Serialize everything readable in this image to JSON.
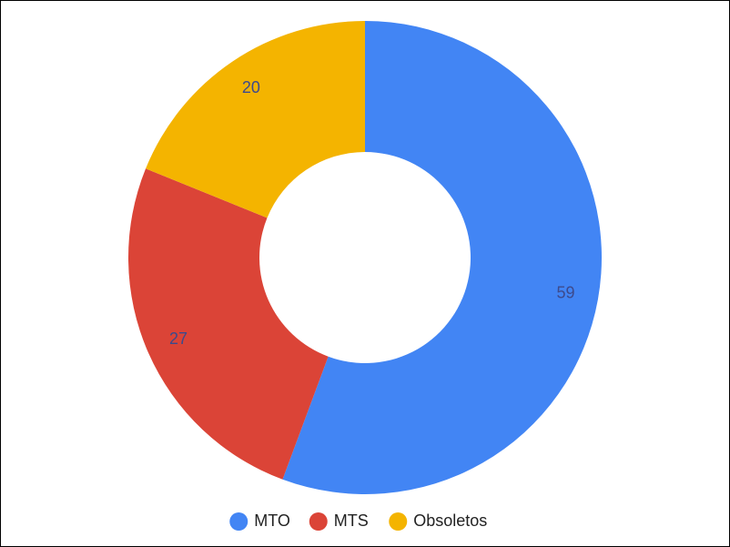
{
  "chart_data": {
    "type": "donut",
    "categories": [
      "MTO",
      "MTS",
      "Obsoletos"
    ],
    "values": [
      59,
      27,
      20
    ],
    "colors": [
      "#4285f4",
      "#db4437",
      "#f4b400"
    ],
    "legend": "bottom"
  }
}
